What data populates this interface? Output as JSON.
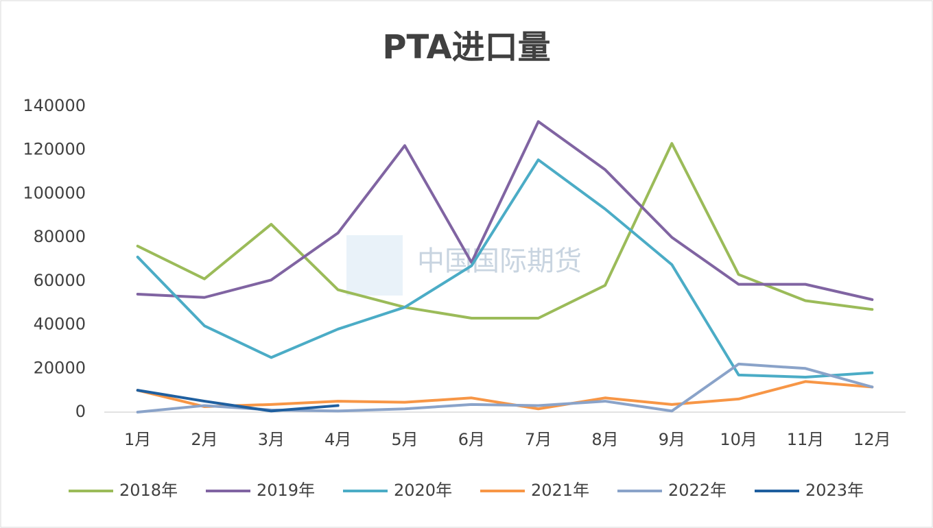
{
  "chart_data": {
    "type": "line",
    "title": "PTA进口量",
    "watermark": "中国国际期货",
    "categories": [
      "1月",
      "2月",
      "3月",
      "4月",
      "5月",
      "6月",
      "7月",
      "8月",
      "9月",
      "10月",
      "11月",
      "12月"
    ],
    "series": [
      {
        "name": "2018年",
        "color": "#9bbb59",
        "values": [
          76000,
          61000,
          86000,
          56000,
          48000,
          43000,
          43000,
          58000,
          123000,
          63000,
          51000,
          47000
        ]
      },
      {
        "name": "2019年",
        "color": "#8064a2",
        "values": [
          54000,
          52500,
          60500,
          82000,
          122000,
          68500,
          133000,
          111000,
          80000,
          58500,
          58500,
          51500
        ]
      },
      {
        "name": "2020年",
        "color": "#4bacc6",
        "values": [
          71000,
          39500,
          25000,
          38000,
          48000,
          67000,
          115500,
          93000,
          67500,
          17000,
          16000,
          18000
        ]
      },
      {
        "name": "2021年",
        "color": "#f79646",
        "values": [
          10000,
          2500,
          3500,
          5000,
          4500,
          6500,
          1500,
          6500,
          3500,
          6000,
          14000,
          11500
        ]
      },
      {
        "name": "2022年",
        "color": "#8aa3c9",
        "values": [
          0,
          3000,
          1000,
          500,
          1500,
          3500,
          3000,
          5000,
          500,
          22000,
          20000,
          11500
        ]
      },
      {
        "name": "2023年",
        "color": "#1f5f9f",
        "values": [
          10000,
          5000,
          500,
          3000,
          null,
          null,
          null,
          null,
          null,
          null,
          null,
          null
        ]
      }
    ],
    "ylim": [
      0,
      140000
    ],
    "yticks": [
      0,
      20000,
      40000,
      60000,
      80000,
      100000,
      120000,
      140000
    ],
    "grid": false,
    "legend": "bottom"
  }
}
